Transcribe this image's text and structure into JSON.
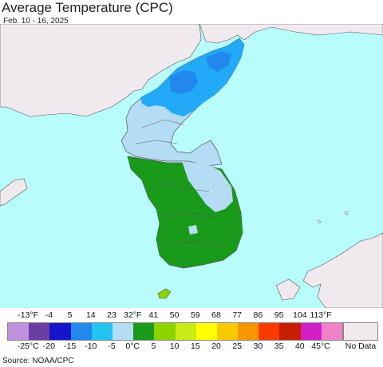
{
  "header": {
    "title": "Average Temperature (CPC)",
    "date": "Feb. 10 - 16, 2025"
  },
  "legend": {
    "fahrenheit_labels": [
      "-13°F",
      "-4",
      "5",
      "14",
      "23",
      "32°F",
      "41",
      "50",
      "59",
      "68",
      "77",
      "86",
      "95",
      "104",
      "113°F"
    ],
    "celsius_labels": [
      "-25°C",
      "-20",
      "-15",
      "-10",
      "-5",
      "0°C",
      "5",
      "10",
      "15",
      "20",
      "25",
      "30",
      "35",
      "40",
      "45°C"
    ],
    "colors": [
      "#c090dc",
      "#6a3ea0",
      "#1414c8",
      "#2288ee",
      "#22c4f4",
      "#b4dcf4",
      "#1a9a1a",
      "#8cd400",
      "#c8ec14",
      "#ffff00",
      "#f8c800",
      "#f89600",
      "#f83c00",
      "#c81e00",
      "#d21ec8",
      "#f082c8"
    ],
    "nodata_color": "#f0eaee",
    "nodata_label": "No Data"
  },
  "map": {
    "ocean_color": "#b8fcfc",
    "land_nodata_color": "#f0eaee",
    "regions": [
      {
        "name": "north-korea-northeast",
        "color": "#22aaf8"
      },
      {
        "name": "north-korea-core",
        "color": "#2288ee"
      },
      {
        "name": "north-korea-south",
        "color": "#b4dcf4"
      },
      {
        "name": "south-korea-south",
        "color": "#1a9a1a"
      },
      {
        "name": "jeju",
        "color": "#8cd400"
      }
    ]
  },
  "footer": {
    "source": "Source: NOAA/CPC"
  }
}
